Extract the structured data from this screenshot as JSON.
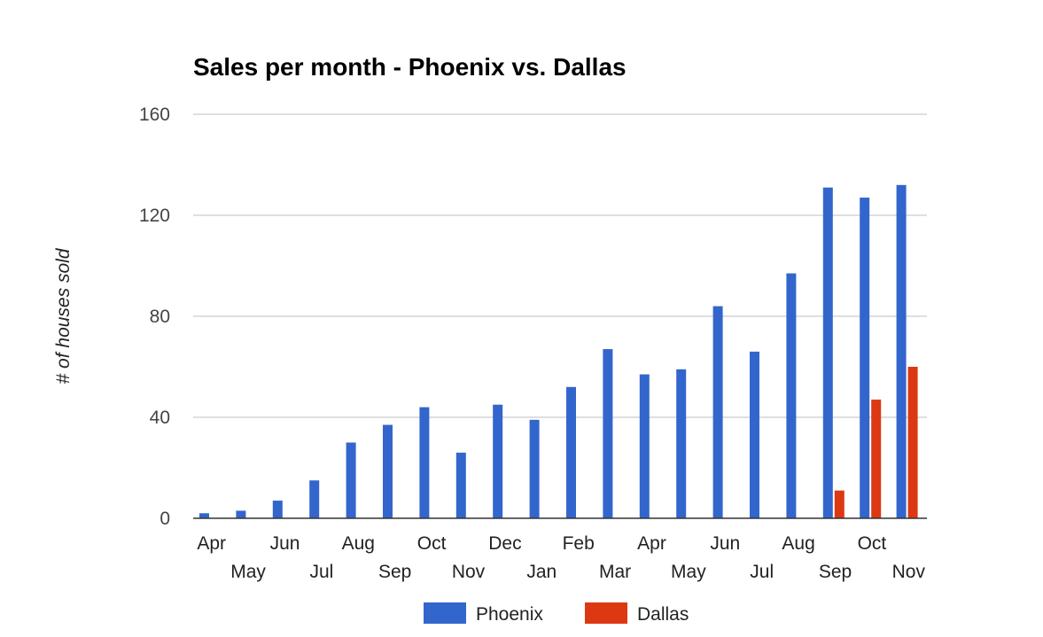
{
  "chart_data": {
    "type": "bar",
    "title": "Sales per month - Phoenix vs. Dallas",
    "xlabel": "",
    "ylabel": "# of houses sold",
    "ylim": [
      0,
      160
    ],
    "yticks": [
      0,
      40,
      80,
      120,
      160
    ],
    "grid": true,
    "legend_position": "bottom",
    "categories": [
      "Apr",
      "May",
      "Jun",
      "Jul",
      "Aug",
      "Sep",
      "Oct",
      "Nov",
      "Dec",
      "Jan",
      "Feb",
      "Mar",
      "Apr",
      "May",
      "Jun",
      "Jul",
      "Aug",
      "Sep",
      "Oct",
      "Nov"
    ],
    "series": [
      {
        "name": "Phoenix",
        "color": "#3366cc",
        "values": [
          2,
          3,
          7,
          15,
          30,
          37,
          44,
          26,
          45,
          39,
          52,
          67,
          57,
          59,
          84,
          66,
          97,
          131,
          127,
          132
        ]
      },
      {
        "name": "Dallas",
        "color": "#dc3912",
        "values": [
          null,
          null,
          null,
          null,
          null,
          null,
          null,
          null,
          null,
          null,
          null,
          null,
          null,
          null,
          null,
          null,
          null,
          11,
          47,
          60
        ]
      }
    ]
  }
}
